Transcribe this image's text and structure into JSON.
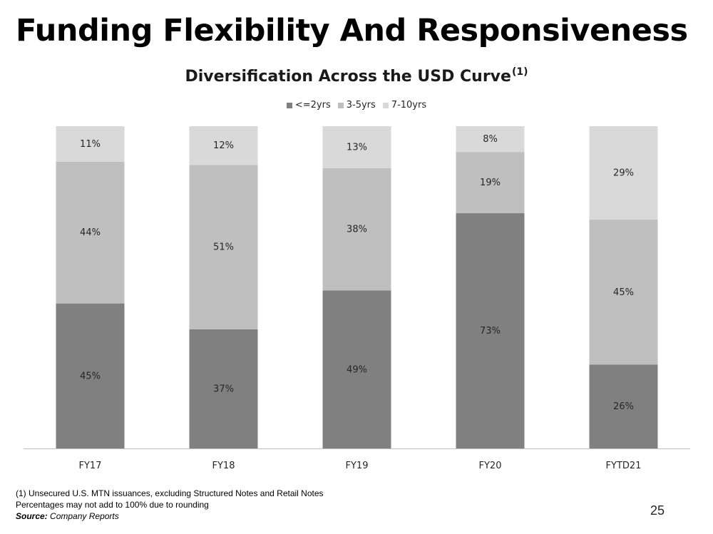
{
  "title": "Funding Flexibility And Responsiveness",
  "chart_data": {
    "type": "bar",
    "stacked": true,
    "title": "Diversification Across the USD Curve",
    "title_superscript": "(1)",
    "categories": [
      "FY17",
      "FY18",
      "FY19",
      "FY20",
      "FYTD21"
    ],
    "series": [
      {
        "name": "<=2yrs",
        "values": [
          45,
          37,
          49,
          73,
          26
        ],
        "labels": [
          "45%",
          "37%",
          "49%",
          "73%",
          "26%"
        ],
        "color": "#808080"
      },
      {
        "name": "3-5yrs",
        "values": [
          44,
          51,
          38,
          19,
          45
        ],
        "labels": [
          "44%",
          "51%",
          "38%",
          "19%",
          "45%"
        ],
        "color": "#bfbfbf"
      },
      {
        "name": "7-10yrs",
        "values": [
          11,
          12,
          13,
          8,
          29
        ],
        "labels": [
          "11%",
          "12%",
          "13%",
          "8%",
          "29%"
        ],
        "color": "#d9d9d9"
      }
    ],
    "ylim": [
      0,
      100
    ],
    "legend_position": "top",
    "grid": false
  },
  "footnotes": {
    "note1": "(1)  Unsecured U.S. MTN issuances, excluding Structured Notes and Retail Notes",
    "note2": "Percentages may not add to 100% due to rounding",
    "source_label": "Source:",
    "source_value": "Company Reports"
  },
  "page_number": "25"
}
